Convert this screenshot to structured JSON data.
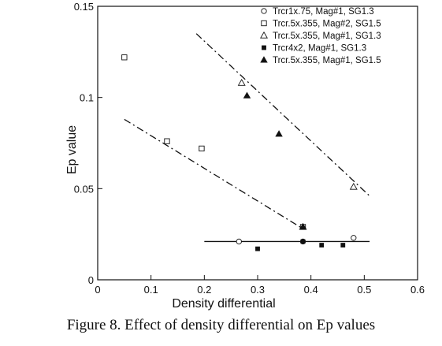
{
  "caption": "Figure 8.  Effect of density differential on Ep values",
  "chart_data": {
    "type": "scatter",
    "title": "",
    "xlabel": "Density differential",
    "ylabel": "Ep value",
    "xlim": [
      0,
      0.6
    ],
    "ylim": [
      0,
      0.15
    ],
    "xticks": [
      0,
      0.1,
      0.2,
      0.3,
      0.4,
      0.5,
      0.6
    ],
    "xtick_labels": [
      "0",
      "0.1",
      "0.2",
      "0.3",
      "0.4",
      "0.5",
      "0.6"
    ],
    "yticks": [
      0,
      0.05,
      0.1,
      0.15
    ],
    "ytick_labels": [
      "0",
      "0.05",
      "0.1",
      "0.15"
    ],
    "grid": false,
    "legend_position": "top-right",
    "series": [
      {
        "name": "Trcr1x.75, Mag#1, SG1.3",
        "marker": "open-circle",
        "points": [
          [
            0.265,
            0.021
          ],
          [
            0.385,
            0.021
          ],
          [
            0.48,
            0.023
          ]
        ]
      },
      {
        "name": "Trcr.5x.355, Mag#2, SG1.5",
        "marker": "open-square",
        "points": [
          [
            0.05,
            0.122
          ],
          [
            0.13,
            0.076
          ],
          [
            0.195,
            0.072
          ],
          [
            0.385,
            0.029
          ]
        ]
      },
      {
        "name": "Trcr.5x.355, Mag#1, SG1.3",
        "marker": "open-triangle",
        "points": [
          [
            0.27,
            0.108
          ],
          [
            0.385,
            0.029
          ],
          [
            0.48,
            0.051
          ]
        ]
      },
      {
        "name": "Trcr4x2, Mag#1, SG1.3",
        "marker": "filled-square",
        "points": [
          [
            0.3,
            0.017
          ],
          [
            0.385,
            0.021
          ],
          [
            0.42,
            0.019
          ],
          [
            0.46,
            0.019
          ]
        ]
      },
      {
        "name": "Trcr.5x.355, Mag#1, SG1.5",
        "marker": "filled-triangle",
        "points": [
          [
            0.28,
            0.101
          ],
          [
            0.34,
            0.08
          ],
          [
            0.385,
            0.029
          ]
        ]
      }
    ],
    "trend_lines": [
      {
        "style": "dash-dot",
        "from": [
          0.05,
          0.088
        ],
        "to": [
          0.385,
          0.028
        ]
      },
      {
        "style": "dash-dot",
        "from": [
          0.185,
          0.135
        ],
        "to": [
          0.51,
          0.046
        ]
      },
      {
        "style": "solid",
        "from": [
          0.2,
          0.021
        ],
        "to": [
          0.51,
          0.021
        ]
      }
    ]
  }
}
